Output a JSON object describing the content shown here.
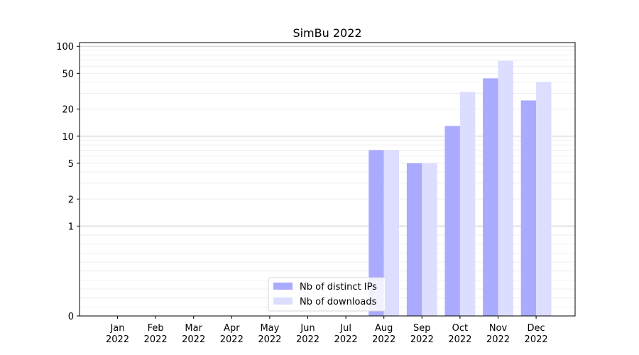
{
  "chart_data": {
    "type": "bar",
    "title": "SimBu 2022",
    "xlabel": "",
    "ylabel": "",
    "y_scale": "symlog",
    "yticks": [
      0,
      1,
      2,
      5,
      10,
      20,
      50,
      100
    ],
    "ylim": [
      0,
      110
    ],
    "categories": [
      "Jan\n2022",
      "Feb\n2022",
      "Mar\n2022",
      "Apr\n2022",
      "May\n2022",
      "Jun\n2022",
      "Jul\n2022",
      "Aug\n2022",
      "Sep\n2022",
      "Oct\n2022",
      "Nov\n2022",
      "Dec\n2022"
    ],
    "series": [
      {
        "name": "Nb of distinct IPs",
        "color": "#aaaaff",
        "values": [
          0,
          0,
          0,
          0,
          0,
          0,
          0,
          7,
          5,
          13,
          44,
          25
        ]
      },
      {
        "name": "Nb of downloads",
        "color": "#ddddff",
        "values": [
          0,
          0,
          0,
          0,
          0,
          0,
          0,
          7,
          5,
          31,
          69,
          40
        ]
      }
    ],
    "legend": "lower-center",
    "grid": "y-minor"
  }
}
